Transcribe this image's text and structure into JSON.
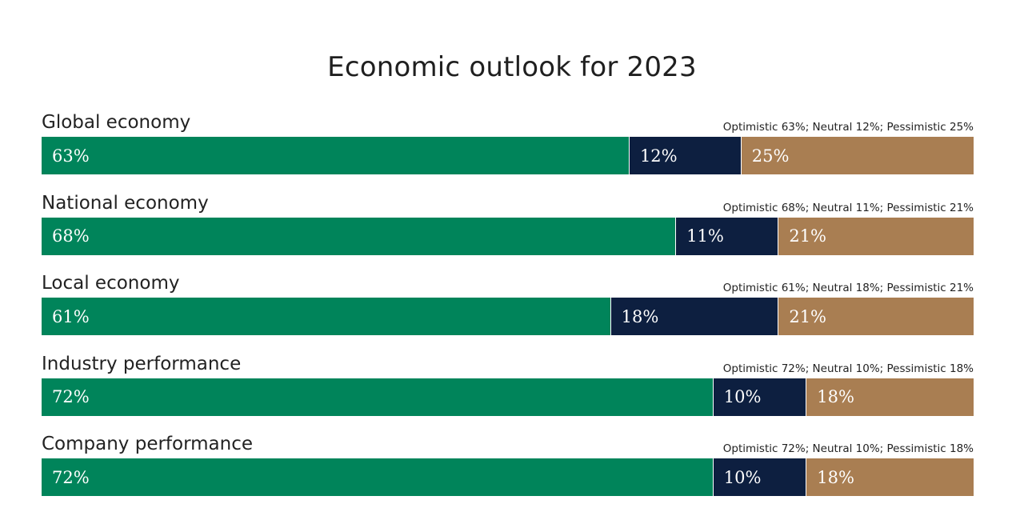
{
  "chart_data": {
    "type": "bar",
    "orientation": "horizontal-stacked-100",
    "title": "Economic outlook for 2023",
    "categories": [
      "Global economy",
      "National economy",
      "Local economy",
      "Industry performance",
      "Company performance"
    ],
    "summaries": [
      "Optimistic 63%; Neutral 12%; Pessimistic 25%",
      "Optimistic 68%; Neutral 11%; Pessimistic 21%",
      "Optimistic 61%; Neutral 18%; Pessimistic 21%",
      "Optimistic 72%; Neutral 10%; Pessimistic 18%",
      "Optimistic 72%; Neutral 10%; Pessimistic 18%"
    ],
    "series": [
      {
        "name": "Optimistic",
        "color": "#00845a",
        "values": [
          63,
          68,
          61,
          72,
          72
        ],
        "labels": [
          "63%",
          "68%",
          "61%",
          "72%",
          "72%"
        ]
      },
      {
        "name": "Neutral",
        "color": "#0d1f40",
        "values": [
          12,
          11,
          18,
          10,
          10
        ],
        "labels": [
          "12%",
          "11%",
          "18%",
          "10%",
          "10%"
        ]
      },
      {
        "name": "Pessimistic",
        "color": "#a97e52",
        "values": [
          25,
          21,
          21,
          18,
          18
        ],
        "labels": [
          "25%",
          "21%",
          "21%",
          "18%",
          "18%"
        ]
      }
    ],
    "xlim": [
      0,
      100
    ],
    "grid": false
  }
}
